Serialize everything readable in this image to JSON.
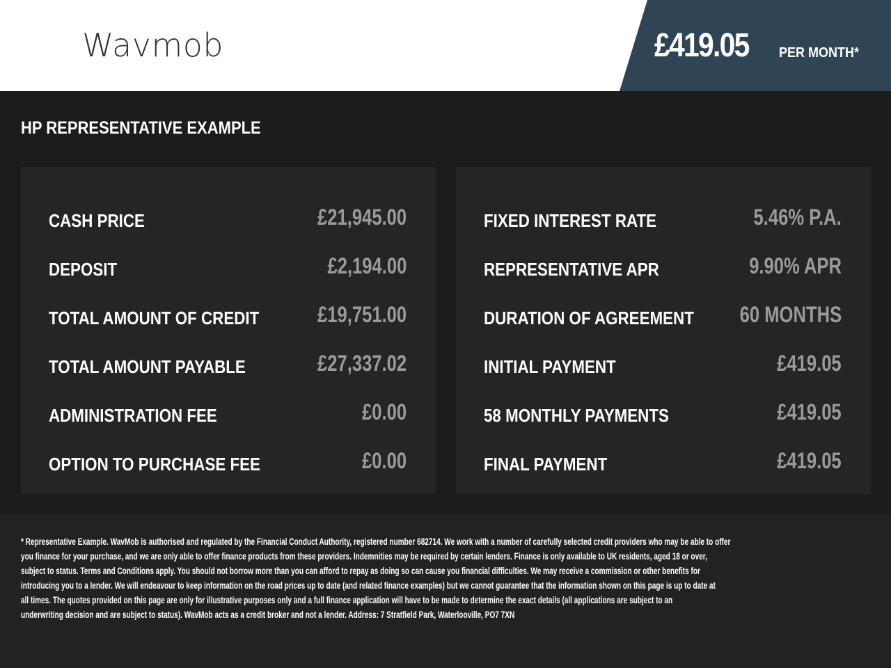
{
  "header": {
    "logo": "Wavmob",
    "monthly_price": "£419.05",
    "per_month_label": "PER MONTH*",
    "accent_color": "#2f4454"
  },
  "section_title": "HP REPRESENTATIVE EXAMPLE",
  "left_panel": [
    {
      "label": "CASH PRICE",
      "value": "£21,945.00"
    },
    {
      "label": "DEPOSIT",
      "value": "£2,194.00"
    },
    {
      "label": "TOTAL AMOUNT OF CREDIT",
      "value": "£19,751.00"
    },
    {
      "label": "TOTAL AMOUNT PAYABLE",
      "value": "£27,337.02"
    },
    {
      "label": "ADMINISTRATION FEE",
      "value": "£0.00"
    },
    {
      "label": "OPTION TO PURCHASE FEE",
      "value": "£0.00"
    }
  ],
  "right_panel": [
    {
      "label": "FIXED INTEREST RATE",
      "value": "5.46% P.A."
    },
    {
      "label": "REPRESENTATIVE APR",
      "value": "9.90% APR"
    },
    {
      "label": "DURATION OF AGREEMENT",
      "value": "60 MONTHS"
    },
    {
      "label": "INITIAL PAYMENT",
      "value": "£419.05"
    },
    {
      "label": "58 MONTHLY PAYMENTS",
      "value": "£419.05"
    },
    {
      "label": "FINAL PAYMENT",
      "value": "£419.05"
    }
  ],
  "disclaimer_lines": [
    "* Representative Example. WavMob is authorised and regulated by the Financial Conduct Authority, registered number 682714. We work with a number of carefully selected credit providers who may be able to offer",
    "you finance for your purchase, and we are only able to offer finance products from these providers. Indemnities may be required by certain lenders. Finance is only available to UK residents, aged 18 or over,",
    "subject to status. Terms and Conditions apply. You should not borrow more than you can afford to repay as doing so can cause you financial difficulties. We may receive a commission or other benefits for",
    "introducing you to a lender. We will endeavour to keep information on the road prices up to date (and related finance examples) but we cannot guarantee that the information shown on this page is up to date at",
    "all times. The quotes provided on this page are only for illustrative purposes only and a full finance application will have to be made to determine the exact details (all applications are subject to an",
    "underwriting decision and are subject to status). WavMob acts as a credit broker and not a lender. Address: 7 Stratfield Park, Waterlooville, PO7 7XN"
  ]
}
